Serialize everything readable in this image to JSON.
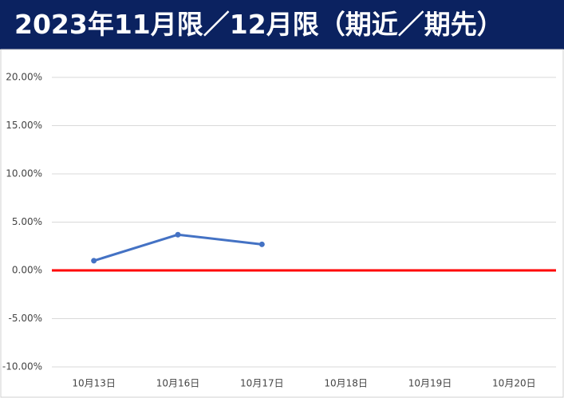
{
  "chart_data": {
    "type": "line",
    "title": "2023年11月限／12月限（期近／期先）",
    "categories": [
      "10月13日",
      "10月16日",
      "10月17日",
      "10月18日",
      "10月19日",
      "10月20日"
    ],
    "values": [
      1.0,
      3.7,
      2.7,
      null,
      null,
      null
    ],
    "color": "#4472c4",
    "ylim": [
      -10,
      20
    ],
    "yticks": [
      {
        "value": -10,
        "label": "-10.00%"
      },
      {
        "value": -5,
        "label": "-5.00%"
      },
      {
        "value": 0,
        "label": "0.00%"
      },
      {
        "value": 5,
        "label": "5.00%"
      },
      {
        "value": 10,
        "label": "10.00%"
      },
      {
        "value": 15,
        "label": "15.00%"
      },
      {
        "value": 20,
        "label": "20.00%"
      }
    ],
    "grid": true,
    "zero_line_color": "#ff0000"
  }
}
